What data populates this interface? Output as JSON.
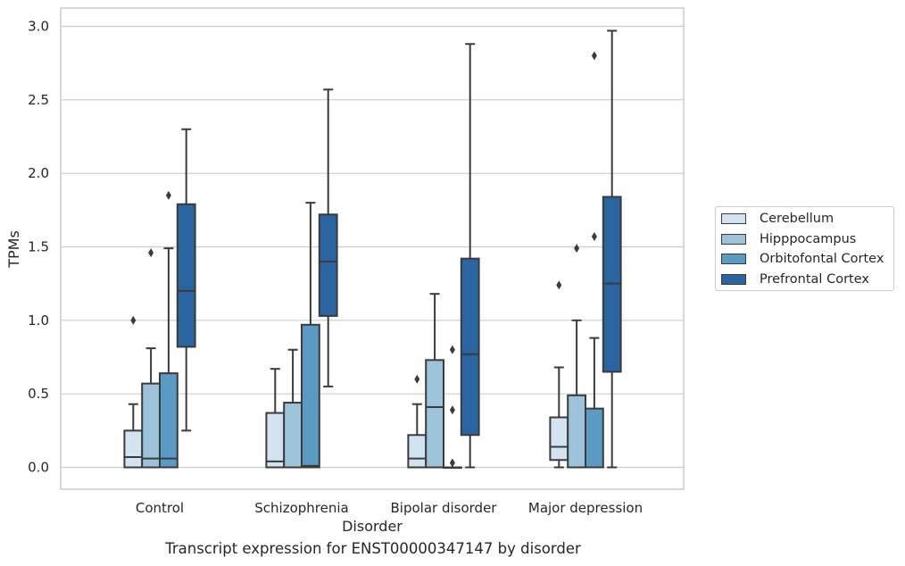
{
  "caption": "Transcript expression for ENST00000347147 by disorder",
  "chart_data": {
    "type": "box",
    "xlabel": "Disorder",
    "ylabel": "TPMs",
    "ylim": [
      -0.15,
      3.12
    ],
    "yticks": [
      0.0,
      0.5,
      1.0,
      1.5,
      2.0,
      2.5,
      3.0
    ],
    "ytick_labels": [
      "0.0",
      "0.5",
      "1.0",
      "1.5",
      "2.0",
      "2.5",
      "3.0"
    ],
    "grid": "horizontal",
    "legend_position": "right",
    "categories": [
      "Control",
      "Schizophrenia",
      "Bipolar disorder",
      "Major depression"
    ],
    "series": [
      {
        "name": "Cerebellum",
        "color": "#d4e3f2",
        "boxes": [
          {
            "whislo": 0.0,
            "q1": 0.0,
            "med": 0.07,
            "q3": 0.25,
            "whishi": 0.43,
            "fliers": [
              1.0
            ]
          },
          {
            "whislo": 0.0,
            "q1": 0.0,
            "med": 0.04,
            "q3": 0.37,
            "whishi": 0.67,
            "fliers": []
          },
          {
            "whislo": 0.0,
            "q1": 0.0,
            "med": 0.06,
            "q3": 0.22,
            "whishi": 0.43,
            "fliers": [
              0.6
            ]
          },
          {
            "whislo": 0.0,
            "q1": 0.05,
            "med": 0.14,
            "q3": 0.34,
            "whishi": 0.68,
            "fliers": [
              1.24
            ]
          }
        ]
      },
      {
        "name": "Hipppocampus",
        "color": "#9cc3da",
        "boxes": [
          {
            "whislo": 0.0,
            "q1": 0.0,
            "med": 0.06,
            "q3": 0.57,
            "whishi": 0.81,
            "fliers": [
              1.46
            ]
          },
          {
            "whislo": 0.0,
            "q1": 0.0,
            "med": 0.0,
            "q3": 0.44,
            "whishi": 0.8,
            "fliers": []
          },
          {
            "whislo": 0.0,
            "q1": 0.0,
            "med": 0.41,
            "q3": 0.73,
            "whishi": 1.18,
            "fliers": []
          },
          {
            "whislo": 0.0,
            "q1": 0.0,
            "med": 0.0,
            "q3": 0.49,
            "whishi": 1.0,
            "fliers": [
              1.49
            ]
          }
        ]
      },
      {
        "name": "Orbitofontal Cortex",
        "color": "#5a9ac3",
        "boxes": [
          {
            "whislo": 0.0,
            "q1": 0.0,
            "med": 0.06,
            "q3": 0.64,
            "whishi": 1.49,
            "fliers": [
              1.85
            ]
          },
          {
            "whislo": 0.0,
            "q1": 0.0,
            "med": 0.01,
            "q3": 0.97,
            "whishi": 1.8,
            "fliers": []
          },
          {
            "whislo": 0.0,
            "q1": 0.0,
            "med": 0.0,
            "q3": 0.0,
            "whishi": 0.0,
            "fliers": [
              0.03,
              0.39,
              0.8
            ]
          },
          {
            "whislo": 0.0,
            "q1": 0.0,
            "med": 0.0,
            "q3": 0.4,
            "whishi": 0.88,
            "fliers": [
              1.57,
              2.8
            ]
          }
        ]
      },
      {
        "name": "Prefrontal Cortex",
        "color": "#2a64a1",
        "boxes": [
          {
            "whislo": 0.25,
            "q1": 0.82,
            "med": 1.2,
            "q3": 1.79,
            "whishi": 2.3,
            "fliers": []
          },
          {
            "whislo": 0.55,
            "q1": 1.03,
            "med": 1.4,
            "q3": 1.72,
            "whishi": 2.57,
            "fliers": []
          },
          {
            "whislo": 0.0,
            "q1": 0.22,
            "med": 0.77,
            "q3": 1.42,
            "whishi": 2.88,
            "fliers": []
          },
          {
            "whislo": 0.0,
            "q1": 0.65,
            "med": 1.25,
            "q3": 1.84,
            "whishi": 2.97,
            "fliers": []
          }
        ]
      }
    ]
  }
}
